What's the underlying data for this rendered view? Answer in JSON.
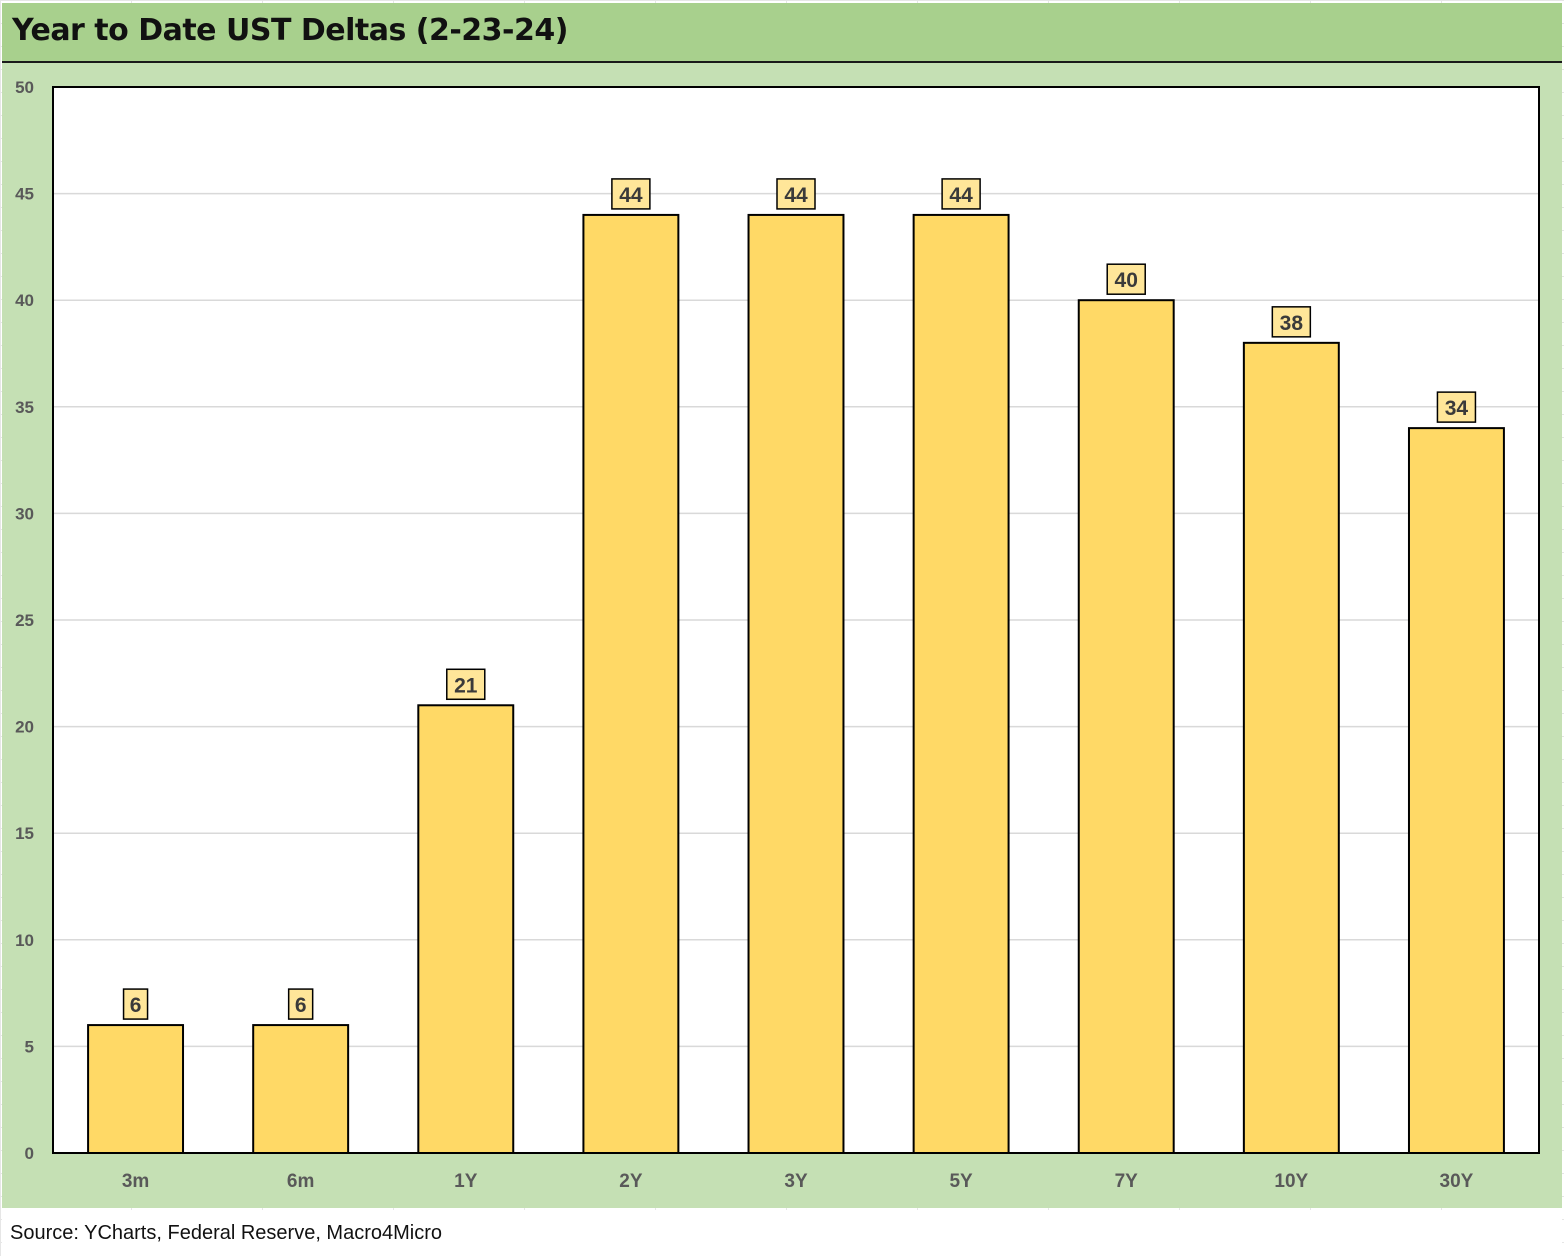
{
  "header": {
    "title": "Year to Date UST Deltas (2-23-24)"
  },
  "footer": {
    "source": "Source: YCharts, Federal Reserve, Macro4Micro"
  },
  "colors": {
    "title_bar": "#a8d08d",
    "chart_area": "#c5e0b4",
    "plot_area": "#ffffff",
    "bar_fill": "#ffd966",
    "bar_stroke": "#000000",
    "label_box_fill": "#ffe699",
    "gridline": "#d9d9d9",
    "tick_text": "#595959"
  },
  "chart_data": {
    "type": "bar",
    "title": "Year to Date UST Deltas (2-23-24)",
    "xlabel": "",
    "ylabel": "",
    "categories": [
      "3m",
      "6m",
      "1Y",
      "2Y",
      "3Y",
      "5Y",
      "7Y",
      "10Y",
      "30Y"
    ],
    "values": [
      6,
      6,
      21,
      44,
      44,
      44,
      40,
      38,
      34
    ],
    "ylim": [
      0,
      50
    ],
    "yticks": [
      0,
      5,
      10,
      15,
      20,
      25,
      30,
      35,
      40,
      45,
      50
    ],
    "grid": true,
    "legend": "none",
    "data_labels": true
  }
}
